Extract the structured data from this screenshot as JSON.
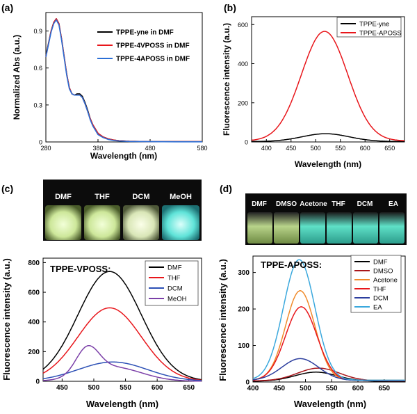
{
  "chart_data": [
    {
      "panel": "(a)",
      "type": "line",
      "xlabel": "Wavelength (nm)",
      "ylabel": "Normalized Abs (a.u.)",
      "xlim": [
        280,
        580
      ],
      "ylim": [
        0,
        1.05
      ],
      "xticks": [
        280,
        380,
        480,
        580
      ],
      "yticks": [
        0,
        0.3,
        0.6,
        0.9
      ],
      "ytick_labels": [
        "0",
        "0.3",
        "0.6",
        "0.9"
      ],
      "legend": "top-right",
      "x": [
        280,
        290,
        295,
        300,
        305,
        310,
        320,
        325,
        330,
        335,
        340,
        345,
        350,
        355,
        360,
        365,
        370,
        380,
        390,
        400,
        410,
        420,
        440,
        480,
        530,
        580
      ],
      "series": [
        {
          "name": "TPPE-yne in DMF",
          "color": "#000000",
          "values": [
            0.7,
            0.9,
            0.97,
            1.0,
            0.96,
            0.84,
            0.55,
            0.44,
            0.39,
            0.38,
            0.39,
            0.39,
            0.37,
            0.32,
            0.26,
            0.19,
            0.14,
            0.07,
            0.04,
            0.025,
            0.015,
            0.01,
            0.005,
            0.003,
            0.002,
            0.002
          ]
        },
        {
          "name": "TPPE-4VPOSS in DMF",
          "color": "#e8161b",
          "values": [
            0.69,
            0.9,
            0.97,
            1.0,
            0.96,
            0.84,
            0.55,
            0.44,
            0.39,
            0.38,
            0.38,
            0.38,
            0.36,
            0.31,
            0.25,
            0.19,
            0.14,
            0.07,
            0.04,
            0.025,
            0.015,
            0.01,
            0.005,
            0.003,
            0.002,
            0.002
          ]
        },
        {
          "name": "TPPE-4APOSS in DMF",
          "color": "#2b6fd6",
          "values": [
            0.69,
            0.89,
            0.96,
            0.99,
            0.95,
            0.83,
            0.54,
            0.43,
            0.39,
            0.38,
            0.38,
            0.38,
            0.36,
            0.31,
            0.25,
            0.18,
            0.13,
            0.06,
            0.035,
            0.02,
            0.012,
            0.008,
            0.004,
            0.002,
            0.001,
            0.001
          ]
        }
      ]
    },
    {
      "panel": "(b)",
      "type": "line",
      "xlabel": "Wavelength (nm)",
      "ylabel": "Fluorescence intensity (a.u.)",
      "xlim": [
        370,
        680
      ],
      "ylim": [
        0,
        640
      ],
      "xticks": [
        400,
        450,
        500,
        550,
        600,
        650
      ],
      "yticks": [
        0,
        200,
        400,
        600
      ],
      "legend": "top-right",
      "series": [
        {
          "name": "TPPE-yne",
          "color": "#000000",
          "peak": 520,
          "amplitude": 40,
          "width": 48,
          "floor": 2
        },
        {
          "name": "TPPE-APOSS",
          "color": "#e8161b",
          "peak": 518,
          "amplitude": 560,
          "width": 47,
          "floor": 5
        }
      ]
    },
    {
      "panel": "(c)",
      "type": "line",
      "title": "TPPE-VPOSS:",
      "xlabel": "Wavelength (nm)",
      "ylabel": "Fluorescence intensity (a.u.)",
      "xlim": [
        420,
        670
      ],
      "ylim": [
        0,
        830
      ],
      "xticks": [
        450,
        500,
        550,
        600,
        650
      ],
      "yticks": [
        0,
        200,
        400,
        600,
        800
      ],
      "legend": "top-right",
      "photo_labels": [
        "DMF",
        "THF",
        "DCM",
        "MeOH"
      ],
      "series": [
        {
          "name": "DMF",
          "color": "#000000",
          "peak": 525,
          "amplitude": 740,
          "width": 50,
          "floor": 0
        },
        {
          "name": "THF",
          "color": "#e8161b",
          "peak": 525,
          "amplitude": 495,
          "width": 50,
          "floor": 0
        },
        {
          "name": "DCM",
          "color": "#2b4fb5",
          "peak": 530,
          "amplitude": 130,
          "width": 55,
          "floor": 0
        },
        {
          "name": "MeOH",
          "color": "#7b3fa8",
          "peak": 490,
          "amplitude": 175,
          "width": 18,
          "floor": 0,
          "tail": 95,
          "tail_peak": 530,
          "tail_width": 45
        }
      ]
    },
    {
      "panel": "(d)",
      "type": "line",
      "title": "TPPE-APOSS:",
      "xlabel": "Wavelength (nm)",
      "ylabel": "Fluorescence intensity (a.u.)",
      "xlim": [
        400,
        690
      ],
      "ylim": [
        0,
        345
      ],
      "xticks": [
        400,
        450,
        500,
        550,
        600,
        650
      ],
      "yticks": [
        0,
        100,
        200,
        300
      ],
      "legend": "top-right",
      "photo_labels": [
        "DMF",
        "DMSO",
        "Acetone",
        "THF",
        "DCM",
        "EA"
      ],
      "series": [
        {
          "name": "DMF",
          "color": "#000000",
          "peak": 520,
          "amplitude": 25,
          "width": 40,
          "floor": 2
        },
        {
          "name": "DMSO",
          "color": "#a8151a",
          "peak": 525,
          "amplitude": 35,
          "width": 40,
          "floor": 3
        },
        {
          "name": "Acetone",
          "color": "#f08a2a",
          "peak": 490,
          "amplitude": 245,
          "width": 28,
          "floor": 5
        },
        {
          "name": "THF",
          "color": "#e8161b",
          "peak": 492,
          "amplitude": 202,
          "width": 30,
          "floor": 4
        },
        {
          "name": "DCM",
          "color": "#2c3e9e",
          "peak": 490,
          "amplitude": 60,
          "width": 35,
          "floor": 4
        },
        {
          "name": "EA",
          "color": "#3aa8dd",
          "peak": 488,
          "amplitude": 330,
          "width": 30,
          "floor": 5
        }
      ]
    }
  ]
}
